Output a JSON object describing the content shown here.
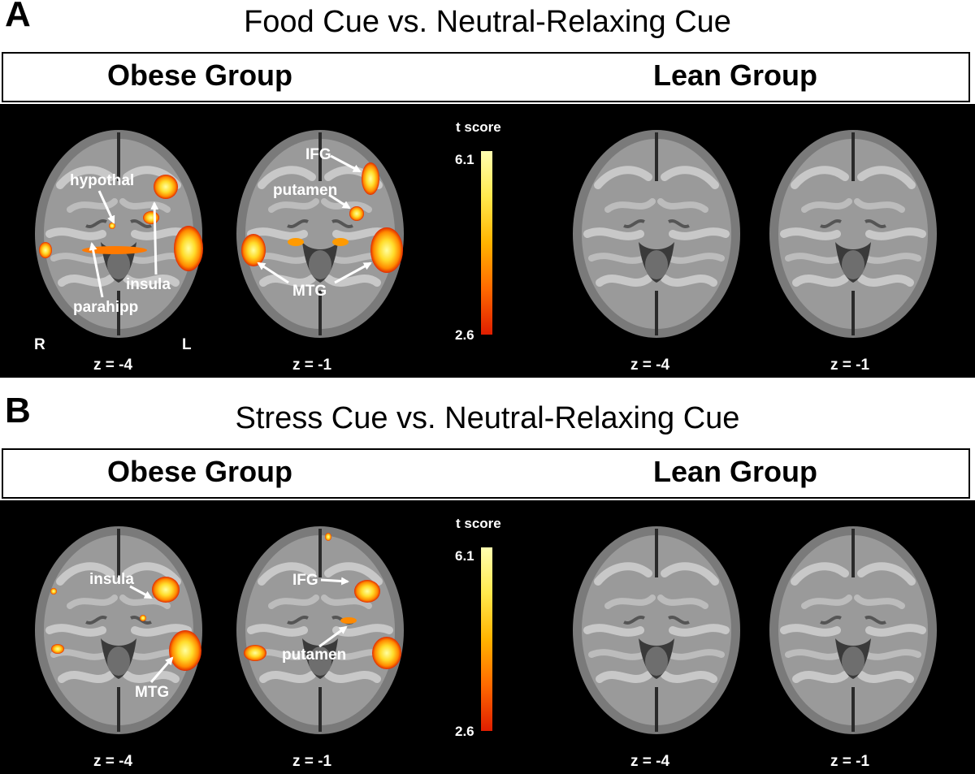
{
  "panels": [
    {
      "letter": "A",
      "title": "Food Cue vs. Neutral-Relaxing Cue",
      "groups": {
        "obese": "Obese Group",
        "lean": "Lean Group"
      },
      "colorbar": {
        "title": "t score",
        "max_label": "6.1",
        "min_label": "2.6",
        "max": 6.1,
        "min": 2.6
      },
      "orientation": {
        "right": "R",
        "left": "L"
      },
      "slices": {
        "obese_1": "z = -4",
        "obese_2": "z = -1",
        "lean_1": "z = -4",
        "lean_2": "z = -1"
      },
      "labels": {
        "hypothal": "hypothal",
        "insula": "insula",
        "parahipp": "parahipp",
        "ifg": "IFG",
        "putamen": "putamen",
        "mtg": "MTG"
      }
    },
    {
      "letter": "B",
      "title": "Stress Cue vs. Neutral-Relaxing Cue",
      "groups": {
        "obese": "Obese Group",
        "lean": "Lean Group"
      },
      "colorbar": {
        "title": "t score",
        "max_label": "6.1",
        "min_label": "2.6",
        "max": 6.1,
        "min": 2.6
      },
      "slices": {
        "obese_1": "z = -4",
        "obese_2": "z = -1",
        "lean_1": "z = -4",
        "lean_2": "z = -1"
      },
      "labels": {
        "insula": "insula",
        "ifg": "IFG",
        "putamen": "putamen",
        "mtg": "MTG"
      }
    }
  ],
  "colors": {
    "background": "#000000",
    "brain_gray": "#8a8a8a",
    "activation_low": "#e01e00",
    "activation_high": "#ffff9a"
  }
}
